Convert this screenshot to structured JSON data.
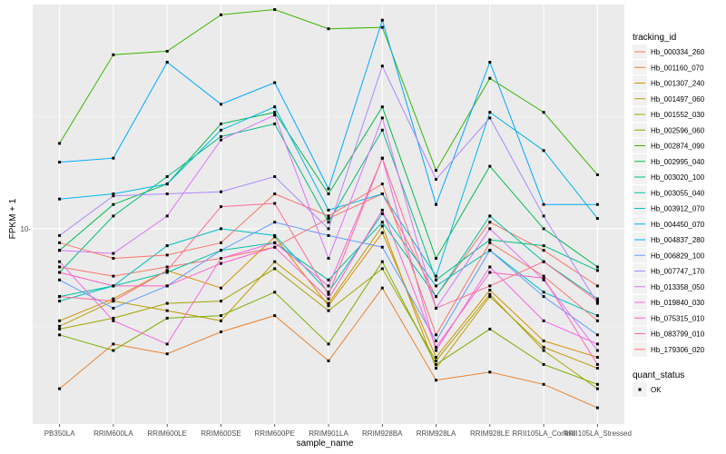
{
  "chart_data": {
    "type": "line",
    "xlabel": "sample_name",
    "ylabel": "FPKM + 1",
    "y_scale": "log",
    "ylim": [
      2.3,
      54
    ],
    "y_ticks": [
      {
        "value": 10,
        "label": "10-"
      }
    ],
    "grid": true,
    "legend_position": "right",
    "categories": [
      "PB350LA",
      "RRIM600LA",
      "RRIM600LE",
      "RRIM600SE",
      "RRIM600PE",
      "RRIM901LA",
      "RRIM928BA",
      "RRIM928LA",
      "RRIM928LE",
      "RRII105LA_Control",
      "RRII105LA_Stressed"
    ],
    "legend": {
      "colour_title": "tracking_id",
      "shape_title": "quant_status",
      "shape_entries": [
        "OK"
      ]
    },
    "series": [
      {
        "name": "Hb_000334_260",
        "color": "#F8766D",
        "values": [
          7.5,
          7.0,
          7.5,
          8.0,
          8.7,
          10.8,
          13.0,
          6.0,
          10.5,
          8.5,
          6.5
        ]
      },
      {
        "name": "Hb_001160_070",
        "color": "#EA8331",
        "values": [
          3.0,
          4.2,
          3.9,
          4.6,
          5.2,
          3.7,
          6.4,
          3.2,
          3.4,
          3.1,
          2.6
        ]
      },
      {
        "name": "Hb_001307_240",
        "color": "#D89000",
        "values": [
          5.0,
          5.9,
          7.3,
          6.4,
          9.4,
          5.6,
          9.7,
          3.8,
          6.3,
          4.3,
          3.8
        ]
      },
      {
        "name": "Hb_001497_060",
        "color": "#C09B00",
        "values": [
          4.8,
          5.8,
          5.4,
          5.0,
          7.8,
          5.7,
          10.2,
          3.5,
          6.0,
          4.1,
          3.5
        ]
      },
      {
        "name": "Hb_001552_030",
        "color": "#A3A500",
        "values": [
          4.7,
          5.1,
          5.7,
          5.8,
          7.4,
          5.4,
          7.4,
          3.7,
          6.1,
          4.0,
          3.0
        ]
      },
      {
        "name": "Hb_002596_060",
        "color": "#7CAE00",
        "values": [
          4.5,
          4.0,
          5.1,
          5.2,
          6.2,
          4.2,
          7.8,
          3.6,
          4.7,
          3.6,
          3.1
        ]
      },
      {
        "name": "Hb_002874_090",
        "color": "#39B600",
        "values": [
          19.0,
          37.0,
          38.0,
          50.0,
          52.0,
          45.0,
          45.5,
          15.5,
          31.0,
          24.0,
          15.0
        ]
      },
      {
        "name": "Hb_002995_040",
        "color": "#00BB4E",
        "values": [
          8.5,
          12.0,
          14.0,
          22.0,
          24.0,
          13.0,
          25.0,
          8.0,
          16.0,
          10.0,
          7.5
        ]
      },
      {
        "name": "Hb_003020_100",
        "color": "#00BF7D",
        "values": [
          7.2,
          11.0,
          14.8,
          20.0,
          22.0,
          10.5,
          21.0,
          6.8,
          9.2,
          8.8,
          7.3
        ]
      },
      {
        "name": "Hb_003055_040",
        "color": "#00C1A3",
        "values": [
          6.0,
          6.5,
          7.2,
          8.5,
          9.0,
          6.8,
          10.5,
          6.0,
          11.0,
          7.8,
          5.9
        ]
      },
      {
        "name": "Hb_003912_070",
        "color": "#00BFC4",
        "values": [
          5.8,
          6.5,
          8.8,
          10.0,
          9.5,
          6.2,
          11.2,
          6.5,
          8.5,
          6.2,
          5.2
        ]
      },
      {
        "name": "Hb_004450_070",
        "color": "#00B8E7",
        "values": [
          12.5,
          13.0,
          14.0,
          21.0,
          25.0,
          11.5,
          13.0,
          7.0,
          24.0,
          18.0,
          10.8
        ]
      },
      {
        "name": "Hb_004837_280",
        "color": "#00A9FF",
        "values": [
          16.5,
          17.0,
          35.0,
          25.5,
          30.0,
          13.5,
          48.0,
          12.0,
          35.0,
          12.0,
          12.0
        ]
      },
      {
        "name": "Hb_006829_100",
        "color": "#619CFF",
        "values": [
          6.8,
          5.5,
          6.5,
          8.5,
          10.5,
          9.5,
          8.7,
          4.3,
          8.5,
          6.0,
          4.5
        ]
      },
      {
        "name": "Hb_007747_170",
        "color": "#AE87FF",
        "values": [
          9.5,
          12.8,
          13.0,
          13.2,
          14.8,
          10.0,
          34.0,
          14.5,
          23.0,
          11.0,
          5.7
        ]
      },
      {
        "name": "Hb_013358_050",
        "color": "#DB72FB",
        "values": [
          8.5,
          8.3,
          11.0,
          19.5,
          23.5,
          8.0,
          23.0,
          5.5,
          10.0,
          6.8,
          4.0
        ]
      },
      {
        "name": "Hb_019840_030",
        "color": "#F564E3",
        "values": [
          7.8,
          5.0,
          4.2,
          8.0,
          9.0,
          6.5,
          17.0,
          4.0,
          7.5,
          5.0,
          4.2
        ]
      },
      {
        "name": "Hb_075315_010",
        "color": "#FF61C3",
        "values": [
          7.2,
          6.5,
          6.5,
          7.7,
          8.7,
          5.9,
          11.5,
          4.1,
          7.2,
          6.9,
          3.6
        ]
      },
      {
        "name": "Hb_083799_010",
        "color": "#FF6C91",
        "values": [
          6.0,
          5.8,
          7.3,
          11.8,
          12.1,
          6.1,
          17.0,
          5.5,
          6.5,
          7.8,
          5.8
        ]
      },
      {
        "name": "Hb_179306_020",
        "color": "#F8766D",
        "values": [
          9.0,
          8.0,
          8.2,
          9.0,
          13.0,
          11.0,
          14.0,
          4.5,
          9.0,
          7.0,
          5.0
        ]
      }
    ]
  }
}
